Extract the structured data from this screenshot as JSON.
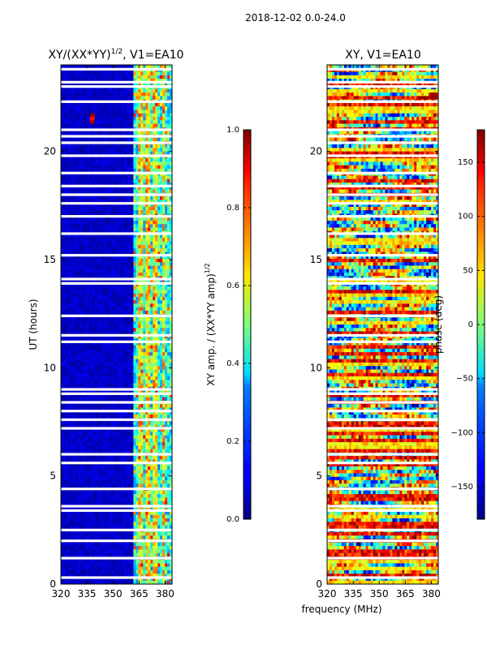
{
  "figure_title": "2018-12-02 0.0-24.0",
  "shared_xlabel": "frequency (MHz)",
  "chart_data": [
    {
      "type": "heatmap",
      "title_prefix": "XY/(XX*YY)",
      "title_exponent": "1/2",
      "title_suffix": ", V1=EA10",
      "xlabel": "frequency (MHz)",
      "ylabel": "UT (hours)",
      "xlim": [
        320,
        384
      ],
      "ylim": [
        0,
        24
      ],
      "xticks": [
        320,
        335,
        350,
        365,
        380
      ],
      "yticks": [
        0,
        5,
        10,
        15,
        20
      ],
      "colorbar": {
        "label_prefix": "XY amp. / (XX*YY amp)",
        "label_exponent": "1/2",
        "vmin": 0.0,
        "vmax": 1.0,
        "ticks": [
          "0.0",
          "0.2",
          "0.4",
          "0.6",
          "0.8",
          "1.0"
        ],
        "tick_values": [
          0.0,
          0.2,
          0.4,
          0.6,
          0.8,
          1.0
        ]
      },
      "background_value": 0.03,
      "bright_band_mhz": [
        362,
        384
      ],
      "bright_columns_mhz": [
        366,
        370,
        374,
        379
      ],
      "hot_spot": {
        "freq_mhz": 338,
        "ut_hours": 21.5,
        "value": 1.0
      },
      "flagged_rows_ut": [
        0.3,
        1.2,
        2.0,
        2.5,
        3.4,
        3.6,
        4.4,
        5.6,
        6.0,
        7.2,
        7.6,
        8.0,
        8.4,
        8.8,
        9.0,
        11.2,
        11.5,
        12.4,
        13.9,
        14.1,
        15.2,
        16.2,
        17.0,
        17.6,
        18.0,
        18.4,
        19.0,
        19.8,
        20.4,
        20.7,
        21.0,
        22.3,
        23.0,
        23.2,
        23.8
      ]
    },
    {
      "type": "heatmap",
      "title": "XY, V1=EA10",
      "xlabel": "frequency (MHz)",
      "ylabel": "",
      "xlim": [
        320,
        384
      ],
      "ylim": [
        0,
        24
      ],
      "xticks": [
        320,
        335,
        350,
        365,
        380
      ],
      "yticks": [
        0,
        5,
        10,
        15,
        20
      ],
      "colorbar": {
        "label": "phase (deg)",
        "vmin": -180,
        "vmax": 180,
        "ticks": [
          "150",
          "100",
          "50",
          "0",
          "−50",
          "−100",
          "−150"
        ],
        "tick_values": [
          150,
          100,
          50,
          0,
          -50,
          -100,
          -150
        ]
      },
      "flagged_rows_ut": [
        0.3,
        1.2,
        2.0,
        2.5,
        3.4,
        3.6,
        4.4,
        5.6,
        6.0,
        7.2,
        7.6,
        8.0,
        8.4,
        8.8,
        9.0,
        11.2,
        11.5,
        12.4,
        13.9,
        14.1,
        15.2,
        16.2,
        17.0,
        17.6,
        18.0,
        18.4,
        19.0,
        19.8,
        20.4,
        20.7,
        21.0,
        22.3,
        23.0,
        23.2,
        23.8
      ]
    }
  ]
}
